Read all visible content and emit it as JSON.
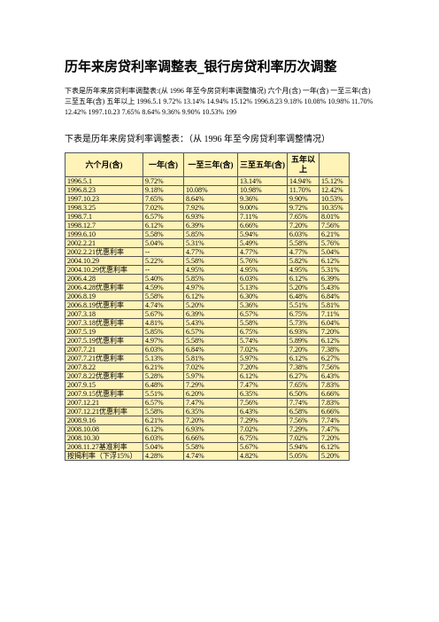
{
  "header": {
    "title": "历年来房贷利率调整表_银行房贷利率历次调整"
  },
  "intro": "下表是历年来房贷利率调整表:(从 1996 年至今房贷利率调整情况) 六个月(含) 一年(含) 一至三年(含) 三至五年(含) 五年以上 1996.5.1 9.72% 13.14% 14.94% 15.12% 1996.8.23 9.18% 10.08% 10.98% 11.70% 12.42% 1997.10.23 7.65% 8.64% 9.36% 9.90% 10.53% 199",
  "subtitle": "下表是历年来房贷利率调整表：（从 1996 年至今房贷利率调整情况）",
  "table": {
    "header": [
      "六个月(含)",
      "一年(含)",
      "一至三年(含)",
      "三至五年(含)",
      "五年以上"
    ],
    "rows": [
      [
        "1996.5.1",
        "9.72%",
        null,
        "13.14%",
        "14.94%",
        "15.12%"
      ],
      [
        "1996.8.23",
        "9.18%",
        "10.08%",
        "10.98%",
        "11.70%",
        "12.42%"
      ],
      [
        "1997.10.23",
        "7.65%",
        "8.64%",
        "9.36%",
        "9.90%",
        "10.53%"
      ],
      [
        "1998.3.25",
        "7.02%",
        "7.92%",
        "9.00%",
        "9.72%",
        "10.35%"
      ],
      [
        "1998.7.1",
        "6.57%",
        "6.93%",
        "7.11%",
        "7.65%",
        "8.01%"
      ],
      [
        "1998.12.7",
        "6.12%",
        "6.39%",
        "6.66%",
        "7.20%",
        "7.56%"
      ],
      [
        "1999.6.10",
        "5.58%",
        "5.85%",
        "5.94%",
        "6.03%",
        "6.21%"
      ],
      [
        "2002.2.21",
        "5.04%",
        "5.31%",
        "5.49%",
        "5.58%",
        "5.76%"
      ],
      [
        "2002.2.21优惠利率",
        "--",
        "4.77%",
        "4.77%",
        "4.77%",
        "5.04%"
      ],
      [
        "2004.10.29",
        "5.22%",
        "5.58%",
        "5.76%",
        "5.82%",
        "6.12%"
      ],
      [
        "2004.10.29优惠利率",
        "--",
        "4.95%",
        "4.95%",
        "4.95%",
        "5.31%"
      ],
      [
        "2006.4.28",
        "5.40%",
        "5.85%",
        "6.03%",
        "6.12%",
        "6.39%"
      ],
      [
        "2006.4.28优惠利率",
        "4.59%",
        "4.97%",
        "5.13%",
        "5.20%",
        "5.43%"
      ],
      [
        "2006.8.19",
        "5.58%",
        "6.12%",
        "6.30%",
        "6.48%",
        "6.84%"
      ],
      [
        "2006.8.19优惠利率",
        "4.74%",
        "5.20%",
        "5.36%",
        "5.51%",
        "5.81%"
      ],
      [
        "2007.3.18",
        "5.67%",
        "6.39%",
        "6.57%",
        "6.75%",
        "7.11%"
      ],
      [
        "2007.3.18优惠利率",
        "4.81%",
        "5.43%",
        "5.58%",
        "5.73%",
        "6.04%"
      ],
      [
        "2007.5.19",
        "5.85%",
        "6.57%",
        "6.75%",
        "6.93%",
        "7.20%"
      ],
      [
        "2007.5.19优惠利率",
        "4.97%",
        "5.58%",
        "5.74%",
        "5.89%",
        "6.12%"
      ],
      [
        "2007.7.21",
        "6.03%",
        "6.84%",
        "7.02%",
        "7.20%",
        "7.38%"
      ],
      [
        "2007.7.21优惠利率",
        "5.13%",
        "5.81%",
        "5.97%",
        "6.12%",
        "6.27%"
      ],
      [
        "2007.8.22",
        "6.21%",
        "7.02%",
        "7.20%",
        "7.38%",
        "7.56%"
      ],
      [
        "2007.8.22优惠利率",
        "5.28%",
        "5.97%",
        "6.12%",
        "6.27%",
        "6.43%"
      ],
      [
        "2007.9.15",
        "6.48%",
        "7.29%",
        "7.47%",
        "7.65%",
        "7.83%"
      ],
      [
        "2007.9.15优惠利率",
        "5.51%",
        "6.20%",
        "6.35%",
        "6.50%",
        "6.66%"
      ],
      [
        "2007.12.21",
        "6.57%",
        "7.47%",
        "7.56%",
        "7.74%",
        "7.83%"
      ],
      [
        "2007.12.21优惠利率",
        "5.58%",
        "6.35%",
        "6.43%",
        "6.58%",
        "6.66%"
      ],
      [
        "2008.9.16",
        "6.21%",
        "7.20%",
        "7.29%",
        "7.56%",
        "7.74%"
      ],
      [
        "2008.10.08",
        "6.12%",
        "6.93%",
        "7.02%",
        "7.29%",
        "7.47%"
      ],
      [
        "2008.10.30",
        "6.03%",
        "6.66%",
        "6.75%",
        "7.02%",
        "7.20%"
      ],
      [
        "2008.11.27基准利率",
        "5.04%",
        "5.58%",
        "5.67%",
        "5.94%",
        "6.12%"
      ],
      [
        "按揭利率（下浮15%）",
        "4.28%",
        "4.74%",
        "4.82%",
        "5.05%",
        "5.20%"
      ]
    ]
  }
}
